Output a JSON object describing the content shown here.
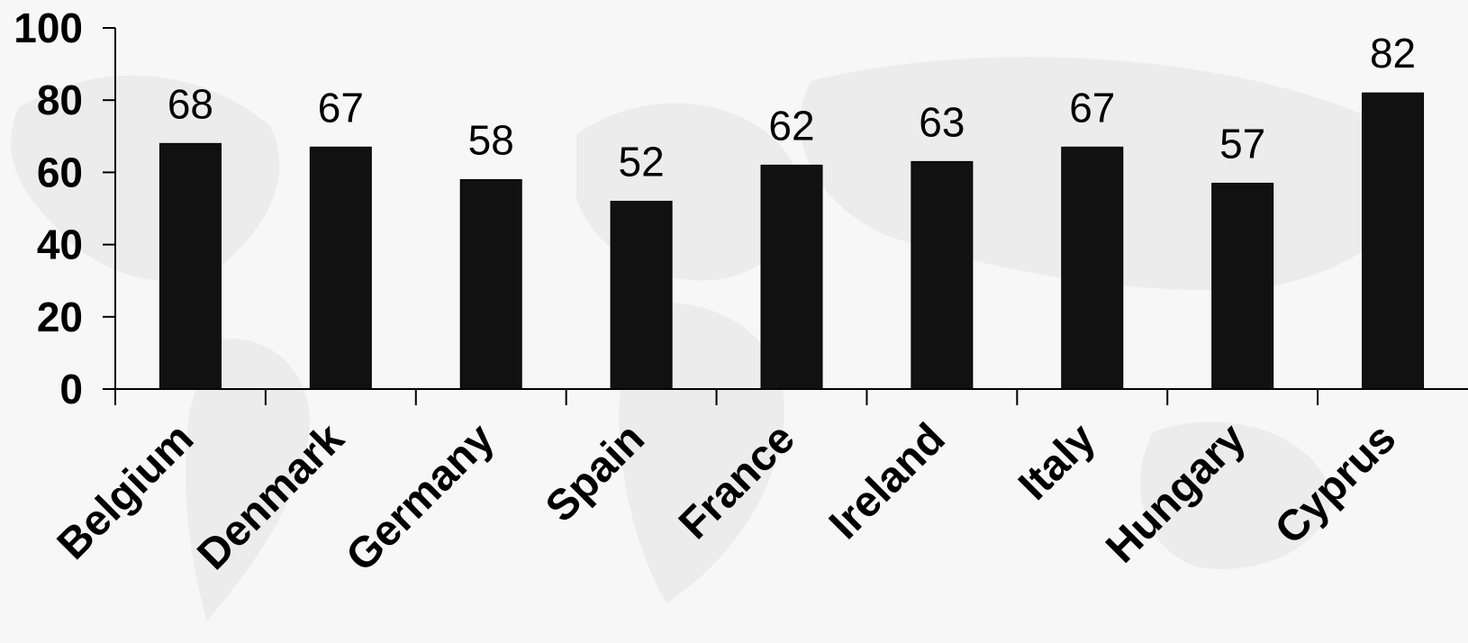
{
  "chart_data": {
    "type": "bar",
    "title": "",
    "xlabel": "",
    "ylabel": "",
    "categories": [
      "Belgium",
      "Denmark",
      "Germany",
      "Spain",
      "France",
      "Ireland",
      "Italy",
      "Hungary",
      "Cyprus"
    ],
    "values": [
      68,
      67,
      58,
      52,
      62,
      63,
      67,
      57,
      82
    ],
    "data_labels": [
      "68",
      "67",
      "58",
      "52",
      "62",
      "63",
      "67",
      "57",
      "82"
    ],
    "ylim": [
      0,
      100
    ],
    "yticks": [
      0,
      20,
      40,
      60,
      80,
      100
    ],
    "grid": false,
    "legend": "none",
    "colors": {
      "bar": "#111111",
      "axis": "#000000",
      "background": "#f7f7f7"
    }
  }
}
